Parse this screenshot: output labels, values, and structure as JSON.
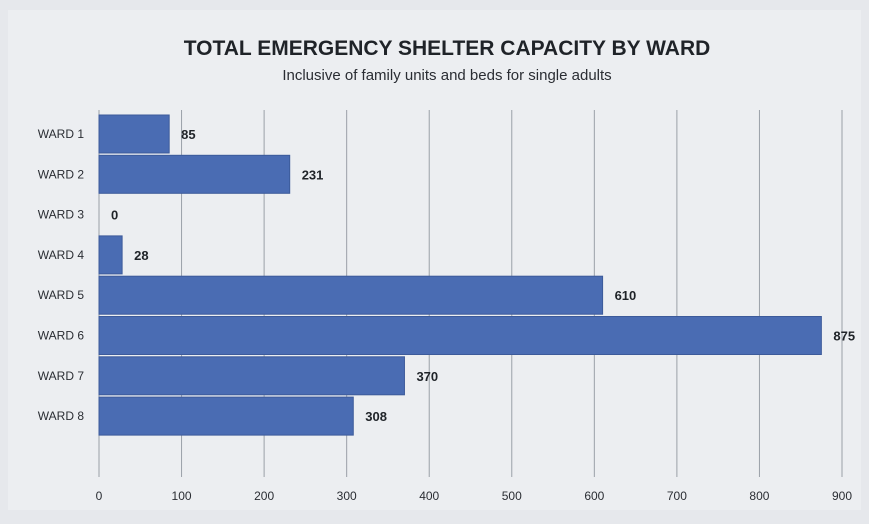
{
  "chart_data": {
    "type": "bar",
    "orientation": "horizontal",
    "title": "TOTAL EMERGENCY SHELTER CAPACITY BY WARD",
    "subtitle": "Inclusive of family units and beds for single adults",
    "categories": [
      "WARD 1",
      "WARD 2",
      "WARD 3",
      "WARD 4",
      "WARD 5",
      "WARD 6",
      "WARD 7",
      "WARD 8"
    ],
    "values": [
      85,
      231,
      0,
      28,
      610,
      875,
      370,
      308
    ],
    "data_labels": [
      "85",
      "231",
      "0",
      "28",
      "610",
      "875",
      "370",
      "308"
    ],
    "xlim": [
      0,
      900
    ],
    "xticks": [
      0,
      100,
      200,
      300,
      400,
      500,
      600,
      700,
      800,
      900
    ],
    "xtick_labels": [
      "0",
      "100",
      "200",
      "300",
      "400",
      "500",
      "600",
      "700",
      "800",
      "900"
    ],
    "grid": "vertical",
    "legend": "none",
    "colors": {
      "bar": "#4a6cb3",
      "bar_edge": "#3c5a9a",
      "grid": "#9aa0a8",
      "background": "#e6e8ec",
      "plot_background": "#eceef1"
    }
  }
}
